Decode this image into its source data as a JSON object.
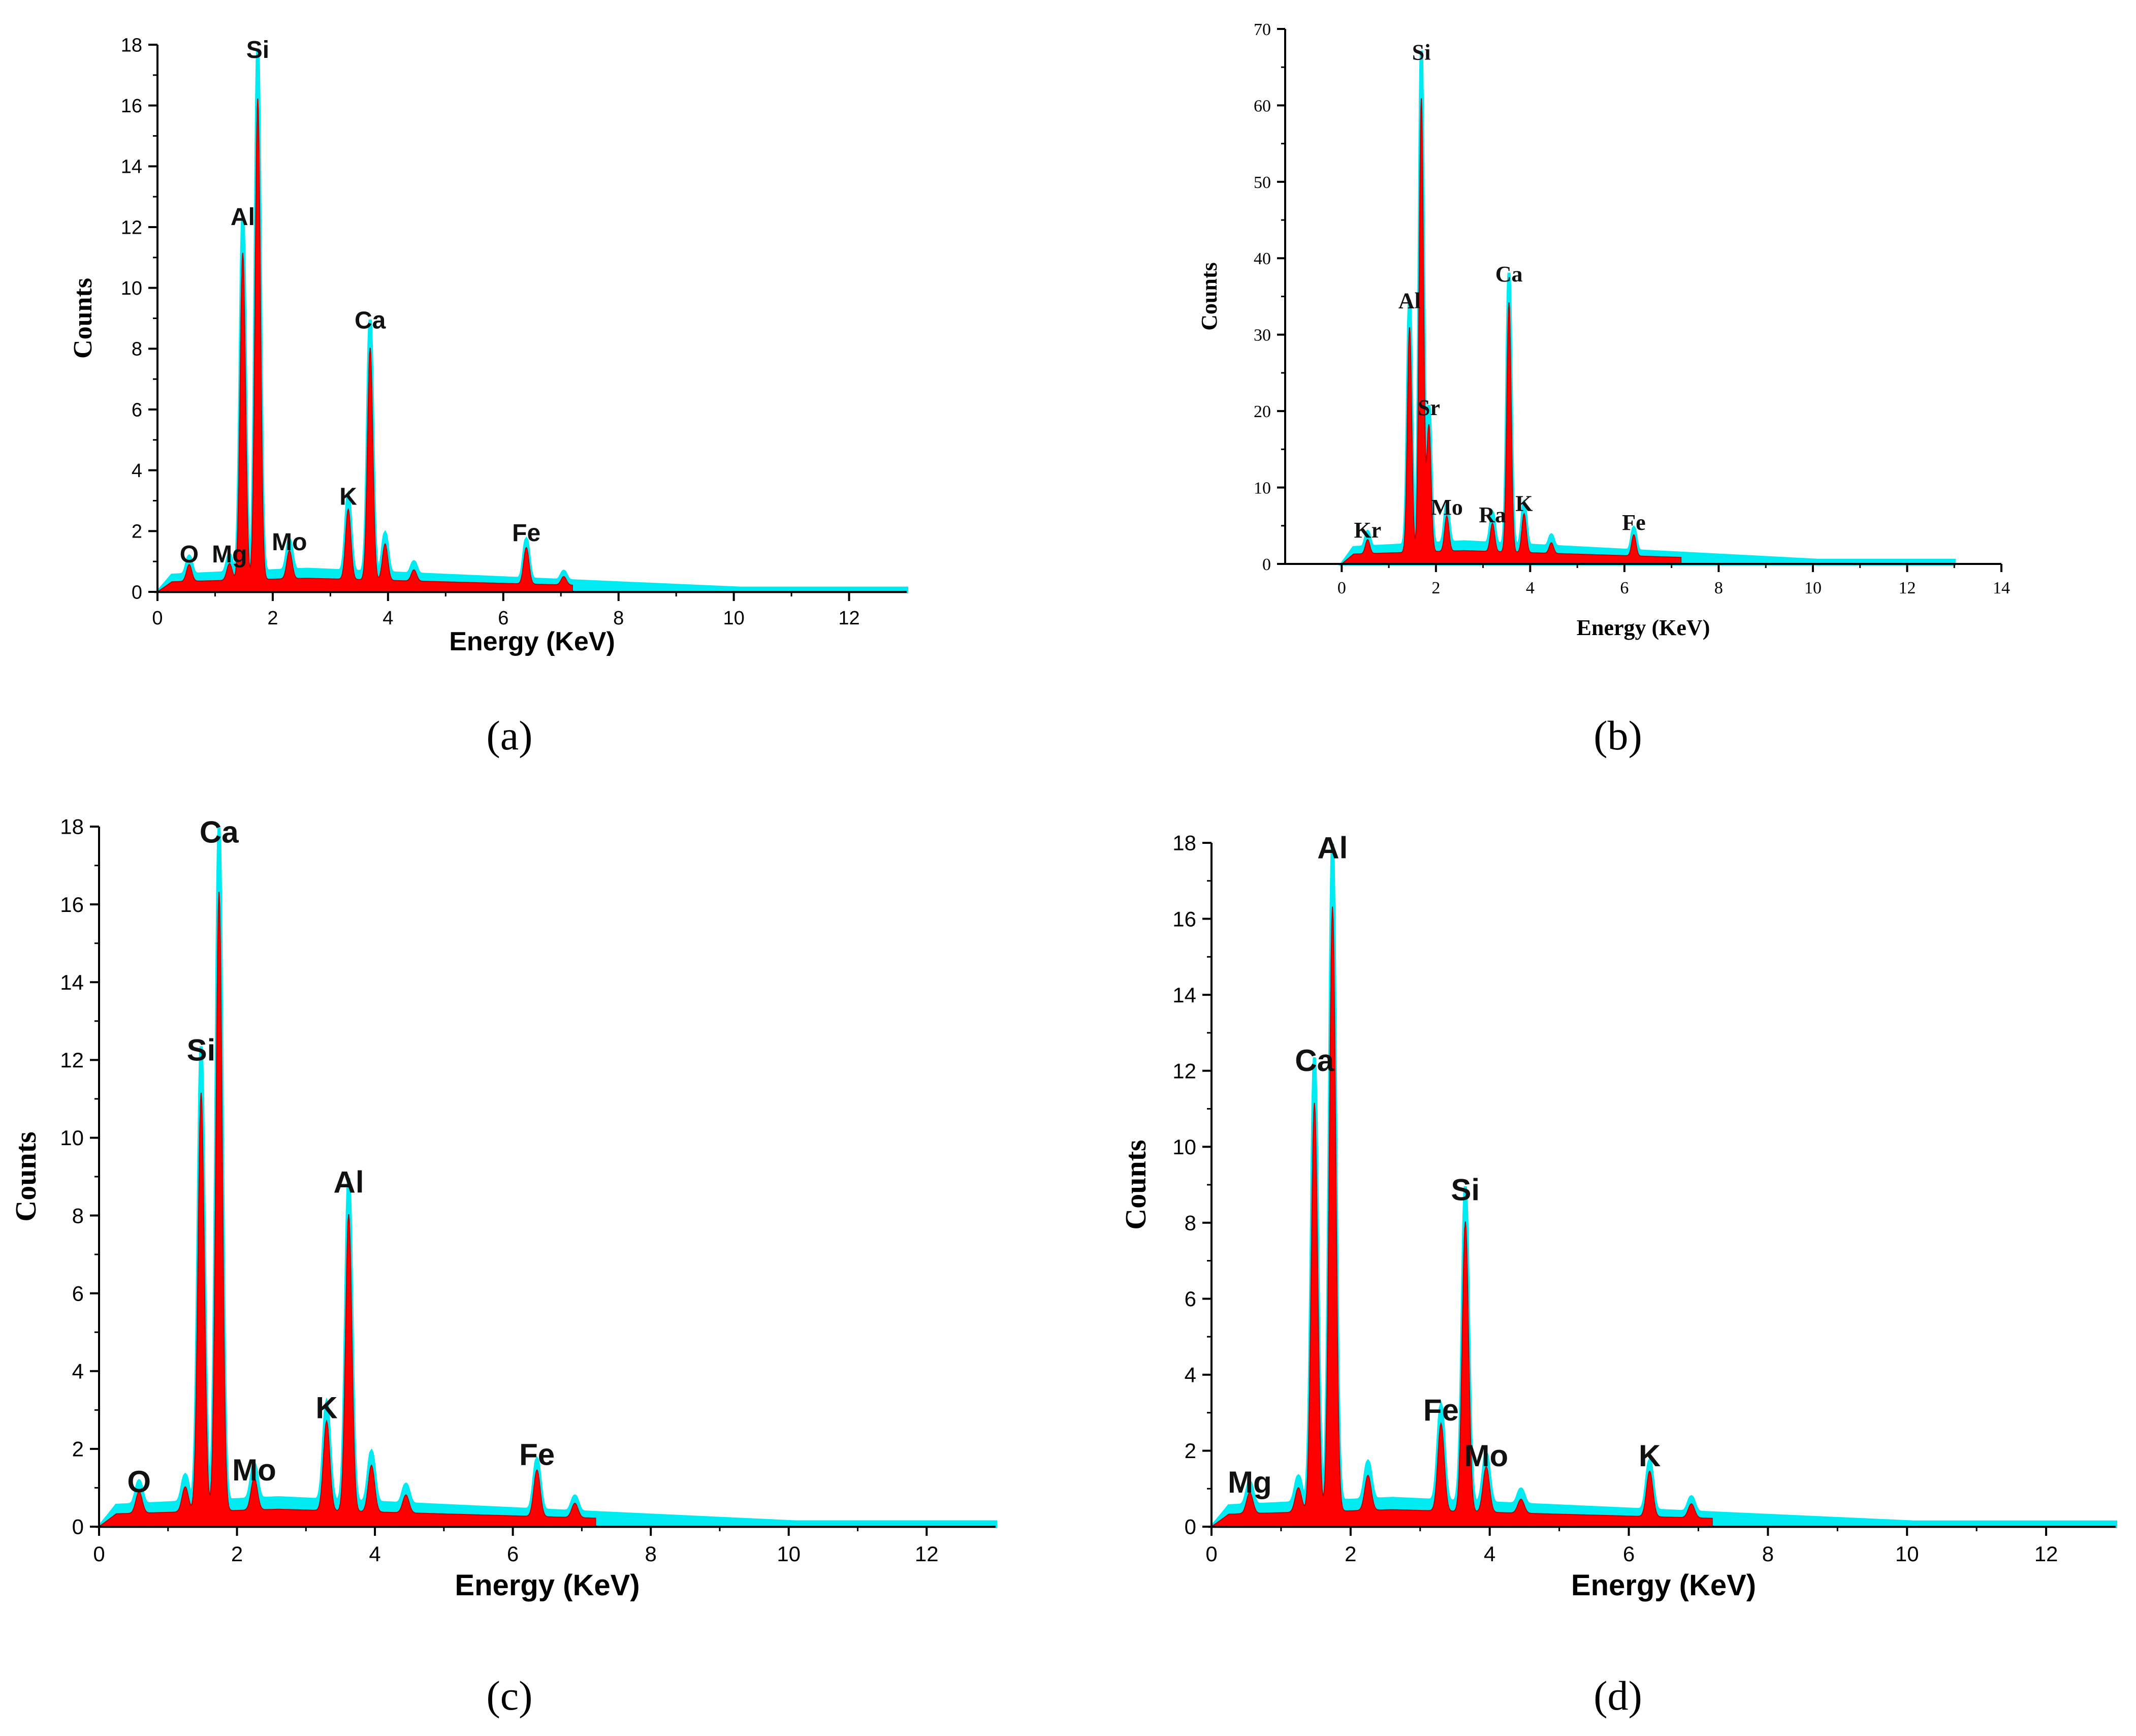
{
  "figure": {
    "captions": [
      "(a)",
      "(b)",
      "(c)",
      "(d)"
    ]
  },
  "colors": {
    "fill": "#ff0000",
    "outline": "#00eaf2",
    "axis": "#000000"
  },
  "chart_data": [
    {
      "type": "area",
      "panel": "(a)",
      "title": "",
      "xlabel": "Energy (KeV)",
      "ylabel": "Counts",
      "xlim": [
        0,
        13
      ],
      "ylim": [
        0,
        18
      ],
      "xticks": [
        0,
        2,
        4,
        6,
        8,
        10,
        12
      ],
      "yticks": [
        0,
        2,
        4,
        6,
        8,
        10,
        12,
        14,
        16,
        18
      ],
      "peaks": [
        {
          "x": 0.55,
          "y": 0.6
        },
        {
          "x": 1.25,
          "y": 0.6
        },
        {
          "x": 1.48,
          "y": 11.7
        },
        {
          "x": 1.74,
          "y": 17.2
        },
        {
          "x": 2.29,
          "y": 1.0
        },
        {
          "x": 3.31,
          "y": 2.5
        },
        {
          "x": 3.69,
          "y": 8.3
        },
        {
          "x": 3.95,
          "y": 1.3
        },
        {
          "x": 4.45,
          "y": 0.4
        },
        {
          "x": 6.4,
          "y": 1.3
        },
        {
          "x": 7.05,
          "y": 0.3
        }
      ],
      "labels": [
        {
          "text": "Si",
          "x": 1.74,
          "y": 17.2
        },
        {
          "text": "Al",
          "x": 1.48,
          "y": 11.7
        },
        {
          "text": "Ca",
          "x": 3.69,
          "y": 8.3
        },
        {
          "text": "K",
          "x": 3.31,
          "y": 2.5
        },
        {
          "text": "O",
          "x": 0.55,
          "y": 0.6
        },
        {
          "text": "Mg",
          "x": 1.25,
          "y": 0.6
        },
        {
          "text": "Mo",
          "x": 2.29,
          "y": 1.0
        },
        {
          "text": "Fe",
          "x": 6.4,
          "y": 1.3
        }
      ]
    },
    {
      "type": "area",
      "panel": "(b)",
      "title": "",
      "xlabel": "Energy (KeV)",
      "ylabel": "Counts",
      "xlim": [
        -1.2,
        14
      ],
      "ylim": [
        0,
        70
      ],
      "xticks": [
        0,
        2,
        4,
        6,
        8,
        10,
        12,
        14
      ],
      "yticks": [
        0,
        10,
        20,
        30,
        40,
        50,
        60,
        70
      ],
      "peaks": [
        {
          "x": 0.55,
          "y": 2
        },
        {
          "x": 1.44,
          "y": 32
        },
        {
          "x": 1.69,
          "y": 64.5
        },
        {
          "x": 1.85,
          "y": 18
        },
        {
          "x": 2.23,
          "y": 5
        },
        {
          "x": 3.2,
          "y": 4
        },
        {
          "x": 3.55,
          "y": 35.5
        },
        {
          "x": 3.87,
          "y": 5.5
        },
        {
          "x": 4.45,
          "y": 1.5
        },
        {
          "x": 6.2,
          "y": 3
        }
      ],
      "labels": [
        {
          "text": "Si",
          "x": 1.69,
          "y": 64.5
        },
        {
          "text": "Al",
          "x": 1.44,
          "y": 32
        },
        {
          "text": "Ca",
          "x": 3.55,
          "y": 35.5
        },
        {
          "text": "Sr",
          "x": 1.85,
          "y": 18
        },
        {
          "text": "Kr",
          "x": 0.55,
          "y": 2
        },
        {
          "text": "Mo",
          "x": 2.23,
          "y": 5
        },
        {
          "text": "Ra",
          "x": 3.2,
          "y": 4
        },
        {
          "text": "K",
          "x": 3.87,
          "y": 5.5
        },
        {
          "text": "Fe",
          "x": 6.2,
          "y": 3
        }
      ]
    },
    {
      "type": "area",
      "panel": "(c)",
      "title": "",
      "xlabel": "Energy (KeV)",
      "ylabel": "Counts",
      "xlim": [
        0,
        13
      ],
      "ylim": [
        0,
        18
      ],
      "xticks": [
        0,
        2,
        4,
        6,
        8,
        10,
        12
      ],
      "yticks": [
        0,
        2,
        4,
        6,
        8,
        10,
        12,
        14,
        16,
        18
      ],
      "peaks": [
        {
          "x": 0.58,
          "y": 0.6
        },
        {
          "x": 1.25,
          "y": 0.7
        },
        {
          "x": 1.48,
          "y": 11.7
        },
        {
          "x": 1.74,
          "y": 17.3
        },
        {
          "x": 2.25,
          "y": 0.9
        },
        {
          "x": 3.3,
          "y": 2.5
        },
        {
          "x": 3.62,
          "y": 8.3
        },
        {
          "x": 3.95,
          "y": 1.3
        },
        {
          "x": 4.45,
          "y": 0.5
        },
        {
          "x": 6.35,
          "y": 1.3
        },
        {
          "x": 6.9,
          "y": 0.4
        }
      ],
      "labels": [
        {
          "text": "Ca",
          "x": 1.74,
          "y": 17.3
        },
        {
          "text": "Si",
          "x": 1.48,
          "y": 11.7
        },
        {
          "text": "Al",
          "x": 3.62,
          "y": 8.3
        },
        {
          "text": "K",
          "x": 3.3,
          "y": 2.5
        },
        {
          "text": "O",
          "x": 0.58,
          "y": 0.6
        },
        {
          "text": "Mo",
          "x": 2.25,
          "y": 0.9
        },
        {
          "text": "Fe",
          "x": 6.35,
          "y": 1.3
        }
      ]
    },
    {
      "type": "area",
      "panel": "(d)",
      "title": "",
      "xlabel": "Energy (KeV)",
      "ylabel": "Counts",
      "xlim": [
        0,
        13
      ],
      "ylim": [
        0,
        18
      ],
      "xticks": [
        0,
        2,
        4,
        6,
        8,
        10,
        12
      ],
      "yticks": [
        0,
        2,
        4,
        6,
        8,
        10,
        12,
        14,
        16,
        18
      ],
      "peaks": [
        {
          "x": 0.55,
          "y": 0.6
        },
        {
          "x": 1.25,
          "y": 0.7
        },
        {
          "x": 1.48,
          "y": 11.7
        },
        {
          "x": 1.74,
          "y": 17.3
        },
        {
          "x": 2.25,
          "y": 1.0
        },
        {
          "x": 3.3,
          "y": 2.5
        },
        {
          "x": 3.65,
          "y": 8.3
        },
        {
          "x": 3.95,
          "y": 1.3
        },
        {
          "x": 4.45,
          "y": 0.4
        },
        {
          "x": 6.3,
          "y": 1.3
        },
        {
          "x": 6.9,
          "y": 0.4
        }
      ],
      "labels": [
        {
          "text": "Al",
          "x": 1.74,
          "y": 17.3
        },
        {
          "text": "Ca",
          "x": 1.48,
          "y": 11.7
        },
        {
          "text": "Si",
          "x": 3.65,
          "y": 8.3
        },
        {
          "text": "Fe",
          "x": 3.3,
          "y": 2.5
        },
        {
          "text": "Mg",
          "x": 0.55,
          "y": 0.6
        },
        {
          "text": "Mo",
          "x": 3.95,
          "y": 1.3
        },
        {
          "text": "K",
          "x": 6.3,
          "y": 1.3
        }
      ]
    }
  ]
}
